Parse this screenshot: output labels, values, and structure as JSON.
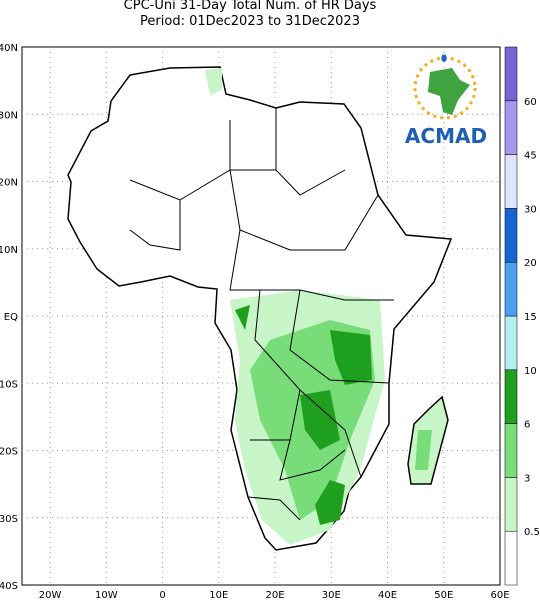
{
  "header": {
    "title": "CPC-Uni 31-Day Total Num. of HR Days",
    "subtitle": "Period: 01Dec2023 to 31Dec2023"
  },
  "axes": {
    "lat_labels": [
      "40N",
      "30N",
      "20N",
      "10N",
      "EQ",
      "10S",
      "20S",
      "30S",
      "40S"
    ],
    "lon_labels": [
      "20W",
      "10W",
      "0",
      "10E",
      "20E",
      "30E",
      "40E",
      "50E",
      "60E"
    ]
  },
  "colorbar": {
    "colors": [
      "#ffffff",
      "#c8f5c8",
      "#78dc78",
      "#1ea01e",
      "#b4f0f0",
      "#4ba0f0",
      "#1464d2",
      "#dce6fa",
      "#a596f0",
      "#7864d7"
    ],
    "labels": [
      "0.5",
      "3",
      "6",
      "10",
      "15",
      "20",
      "30",
      "45",
      "60"
    ]
  },
  "logo": {
    "text": "ACMAD"
  }
}
